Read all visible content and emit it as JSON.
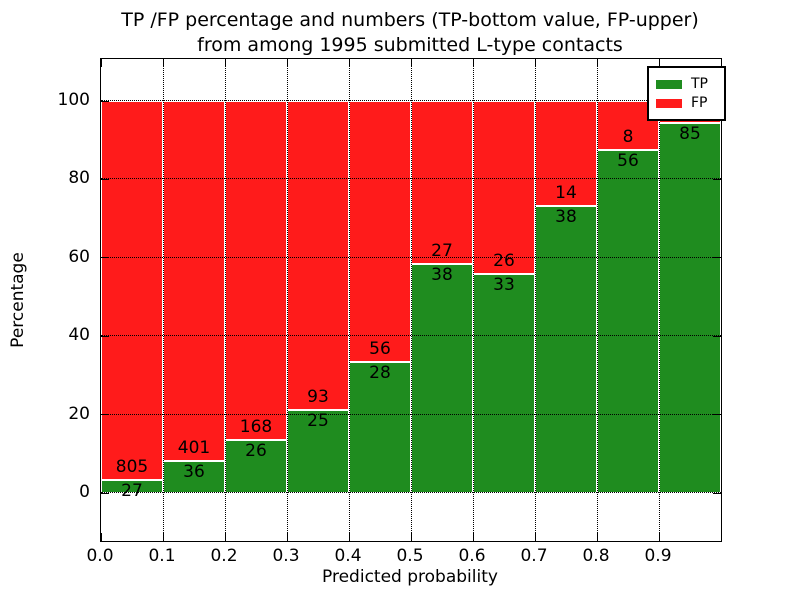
{
  "figure": {
    "title_lines": [
      "TP /FP percentage and numbers (TP-bottom value, FP-upper)",
      "from among 1995 submitted L-type contacts"
    ]
  },
  "chart_data": {
    "type": "bar",
    "subtype": "stacked-percentage",
    "title": "TP /FP percentage and numbers (TP-bottom value, FP-upper)\nfrom among 1995 submitted L-type contacts",
    "xlabel": "Predicted probability",
    "ylabel": "Percentage",
    "x_tick_labels": [
      "0.0",
      "0.1",
      "0.2",
      "0.3",
      "0.4",
      "0.5",
      "0.6",
      "0.7",
      "0.8",
      "0.9"
    ],
    "y_ticks": [
      0,
      20,
      40,
      60,
      80,
      100
    ],
    "y_tick_labels": [
      "0",
      "20",
      "40",
      "60",
      "80",
      "100"
    ],
    "xlim": [
      0.0,
      1.0
    ],
    "grid": "dotted, drawn above bars",
    "legend": {
      "position": "upper right",
      "entries": [
        {
          "label": "TP",
          "color": "#1f8c1f"
        },
        {
          "label": "FP",
          "color": "#ff1b1b"
        }
      ]
    },
    "colors": {
      "tp": "#1f8c1f",
      "fp": "#ff1b1b",
      "bar_edge": "#ffffff"
    },
    "categories": [
      "0.0-0.1",
      "0.1-0.2",
      "0.2-0.3",
      "0.3-0.4",
      "0.4-0.5",
      "0.5-0.6",
      "0.6-0.7",
      "0.7-0.8",
      "0.8-0.9",
      "0.9-1.0"
    ],
    "bins": [
      {
        "range": "0.0-0.1",
        "tp": 27,
        "fp": 805,
        "tp_pct": 3.2
      },
      {
        "range": "0.1-0.2",
        "tp": 36,
        "fp": 401,
        "tp_pct": 8.2
      },
      {
        "range": "0.2-0.3",
        "tp": 26,
        "fp": 168,
        "tp_pct": 13.4
      },
      {
        "range": "0.3-0.4",
        "tp": 25,
        "fp": 93,
        "tp_pct": 21.2
      },
      {
        "range": "0.4-0.5",
        "tp": 28,
        "fp": 56,
        "tp_pct": 33.3
      },
      {
        "range": "0.5-0.6",
        "tp": 38,
        "fp": 27,
        "tp_pct": 58.5
      },
      {
        "range": "0.6-0.7",
        "tp": 33,
        "fp": 26,
        "tp_pct": 55.9
      },
      {
        "range": "0.7-0.8",
        "tp": 38,
        "fp": 14,
        "tp_pct": 73.1
      },
      {
        "range": "0.8-0.9",
        "tp": 56,
        "fp": 8,
        "tp_pct": 87.5
      },
      {
        "range": "0.9-1.0",
        "tp": 85,
        "fp": null,
        "tp_pct": 94.4,
        "note": "FP label hidden behind legend"
      }
    ]
  }
}
